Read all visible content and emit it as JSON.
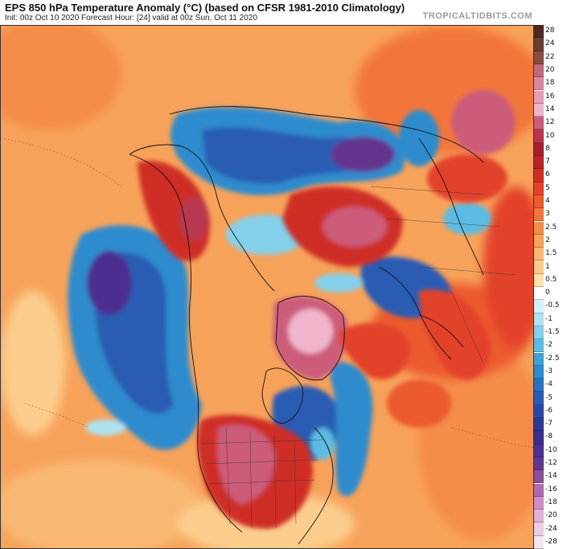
{
  "header": {
    "title": "EPS 850 hPa Temperature Anomaly (°C) (based on CFSR 1981-2010 Climatology)",
    "subtitle": "Init: 00z Oct 10 2020   Forecast Hour: [24]   valid at 00z Sun, Oct 11 2020",
    "brand": "TROPICALTIDBITS.COM"
  },
  "colorbar": {
    "levels": [
      {
        "label": "28",
        "color": "#4a2a22"
      },
      {
        "label": "24",
        "color": "#6b3b30"
      },
      {
        "label": "22",
        "color": "#8a4a3e"
      },
      {
        "label": "20",
        "color": "#c06a7c"
      },
      {
        "label": "18",
        "color": "#d986a0"
      },
      {
        "label": "16",
        "color": "#e79bb7"
      },
      {
        "label": "14",
        "color": "#f0b4cc"
      },
      {
        "label": "12",
        "color": "#cc5c7a"
      },
      {
        "label": "10",
        "color": "#b8374f"
      },
      {
        "label": "8",
        "color": "#a3202c"
      },
      {
        "label": "7",
        "color": "#b82428"
      },
      {
        "label": "6",
        "color": "#cf2e26"
      },
      {
        "label": "5",
        "color": "#e3432a"
      },
      {
        "label": "4",
        "color": "#ec5a2f"
      },
      {
        "label": "3",
        "color": "#f2763a"
      },
      {
        "label": "2.5",
        "color": "#f58c48"
      },
      {
        "label": "2",
        "color": "#f7a25a"
      },
      {
        "label": "1.5",
        "color": "#f9b872"
      },
      {
        "label": "1",
        "color": "#fbcd8d"
      },
      {
        "label": "0.5",
        "color": "#fde2ad"
      },
      {
        "label": "0",
        "color": "#ffffff"
      },
      {
        "label": "-0.5",
        "color": "#d5f0f7"
      },
      {
        "label": "-1",
        "color": "#aee2f1"
      },
      {
        "label": "-1.5",
        "color": "#84d0ea"
      },
      {
        "label": "-2",
        "color": "#5bbbe2"
      },
      {
        "label": "-2.5",
        "color": "#3ba3d8"
      },
      {
        "label": "-3",
        "color": "#2f8bcd"
      },
      {
        "label": "-4",
        "color": "#2a72c0"
      },
      {
        "label": "-5",
        "color": "#2a5bb4"
      },
      {
        "label": "-6",
        "color": "#2b47a6"
      },
      {
        "label": "-7",
        "color": "#2d3795"
      },
      {
        "label": "-8",
        "color": "#3a2f8c"
      },
      {
        "label": "-10",
        "color": "#4c2f8f"
      },
      {
        "label": "-12",
        "color": "#63368f"
      },
      {
        "label": "-14",
        "color": "#8c4f9c"
      },
      {
        "label": "-16",
        "color": "#b06bb0"
      },
      {
        "label": "-18",
        "color": "#cd8ec8"
      },
      {
        "label": "-20",
        "color": "#dfb0d9"
      },
      {
        "label": "-24",
        "color": "#ebcde7"
      },
      {
        "label": "-28",
        "color": "#f5e6f3"
      }
    ]
  }
}
